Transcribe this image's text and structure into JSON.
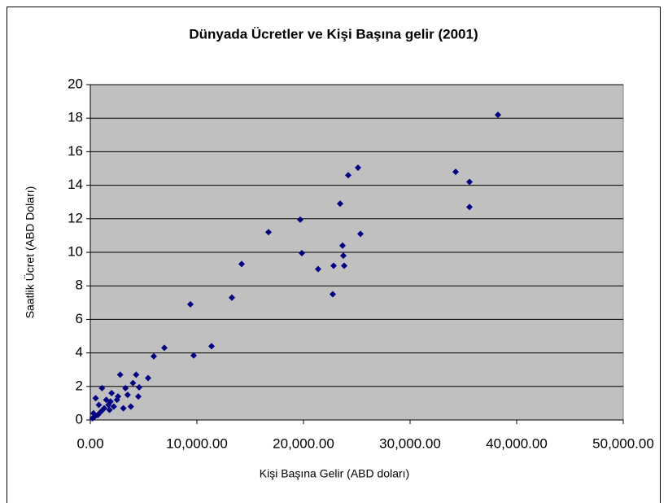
{
  "chart_data": {
    "type": "scatter",
    "title": "Dünyada Ücretler ve Kişi Başına gelir (2001)",
    "x_label": "Kişi Başına Gelir (ABD doları)",
    "y_label": "Saatlik Ücret (ABD Doları)",
    "series": [
      {
        "name": "Saatlik Ücret",
        "color": "#000080",
        "x": [
          38244,
          34275,
          35573,
          35573,
          25115,
          24198,
          23435,
          19695,
          25344,
          16718,
          23664,
          19847,
          23740,
          14198,
          21374,
          22824,
          23817,
          22748,
          9389,
          13282,
          6947,
          11374,
          9695,
          5954,
          5420,
          4504,
          4580,
          2800,
          1100,
          3300,
          4000,
          4300,
          2000,
          1500,
          2500,
          3500,
          1700,
          2200,
          3100,
          3800,
          1300,
          800,
          1800,
          500,
          300,
          400,
          700,
          200,
          1900,
          2600,
          1000
        ],
        "values": [
          18.2,
          14.8,
          14.2,
          12.7,
          15.05,
          14.6,
          12.9,
          11.95,
          11.1,
          11.2,
          10.4,
          9.95,
          9.8,
          9.3,
          9.0,
          9.2,
          9.2,
          7.5,
          6.9,
          7.3,
          4.3,
          4.4,
          3.85,
          3.8,
          2.5,
          1.4,
          1.95,
          2.7,
          1.9,
          1.9,
          2.2,
          2.7,
          1.6,
          1.2,
          1.2,
          1.5,
          0.9,
          0.8,
          0.7,
          0.8,
          0.7,
          0.9,
          0.6,
          1.3,
          0.4,
          0.2,
          0.3,
          0.1,
          1.1,
          1.4,
          0.5
        ]
      }
    ],
    "xlim": [
      0,
      50000
    ],
    "xticks": [
      {
        "value": 0,
        "label": "0.00"
      },
      {
        "value": 10000,
        "label": "10,000.00"
      },
      {
        "value": 20000,
        "label": "20,000.00"
      },
      {
        "value": 30000,
        "label": "30,000.00"
      },
      {
        "value": 40000,
        "label": "40,000.00"
      },
      {
        "value": 50000,
        "label": "50,000.00"
      }
    ],
    "ylim": [
      0,
      20
    ],
    "yticks": [
      0,
      2,
      4,
      6,
      8,
      10,
      12,
      14,
      16,
      18,
      20
    ],
    "grid": true,
    "plot_background": "#c0c0c0"
  }
}
